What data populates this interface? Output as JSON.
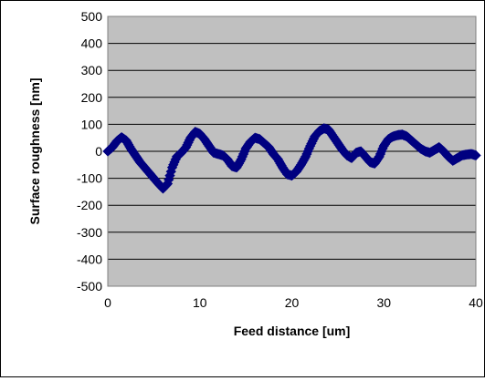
{
  "chart_data": {
    "type": "scatter",
    "xlabel": "Feed distance [um]",
    "ylabel": "Surface roughness [nm]",
    "xlim": [
      0,
      40
    ],
    "ylim": [
      -500,
      500
    ],
    "xticks": [
      "0",
      "10",
      "20",
      "30",
      "40"
    ],
    "yticks": [
      "500",
      "400",
      "300",
      "200",
      "100",
      "0",
      "-100",
      "-200",
      "-300",
      "-400",
      "-500"
    ],
    "grid": true,
    "legend": "none",
    "colors": {
      "plot_background": "#c0c0c0",
      "marker": "#000080",
      "gridline": "#000000"
    },
    "series": [
      {
        "x": [
          0,
          0.5,
          1,
          1.5,
          2,
          2.5,
          3,
          3.5,
          4,
          4.5,
          5,
          5.5,
          6,
          6.5,
          7,
          7.5,
          8,
          8.5,
          9,
          9.5,
          10,
          10.5,
          11,
          11.5,
          12,
          12.5,
          13,
          13.5,
          14,
          14.5,
          15,
          15.5,
          16,
          16.5,
          17,
          17.5,
          18,
          18.5,
          19,
          19.5,
          20,
          20.5,
          21,
          21.5,
          22,
          22.5,
          23,
          23.5,
          24,
          24.5,
          25,
          25.5,
          26,
          26.5,
          27,
          27.5,
          28,
          28.5,
          29,
          29.5,
          30,
          30.5,
          31,
          31.5,
          32,
          32.5,
          33,
          33.5,
          34,
          34.5,
          35,
          35.5,
          36,
          36.5,
          37,
          37.5,
          38,
          38.5,
          39,
          39.5,
          40
        ],
        "y": [
          0,
          15,
          38,
          52,
          40,
          10,
          -15,
          -40,
          -60,
          -80,
          -100,
          -120,
          -138,
          -120,
          -60,
          -20,
          -5,
          15,
          50,
          72,
          65,
          45,
          20,
          -5,
          -10,
          -15,
          -30,
          -55,
          -60,
          -30,
          10,
          35,
          50,
          45,
          30,
          15,
          -10,
          -30,
          -60,
          -85,
          -90,
          -75,
          -50,
          -20,
          20,
          55,
          75,
          85,
          80,
          55,
          30,
          5,
          -15,
          -25,
          -5,
          0,
          -20,
          -40,
          -45,
          -20,
          20,
          45,
          55,
          60,
          62,
          55,
          40,
          25,
          10,
          0,
          -5,
          5,
          15,
          0,
          -20,
          -35,
          -25,
          -15,
          -12,
          -10,
          -15
        ]
      }
    ]
  }
}
